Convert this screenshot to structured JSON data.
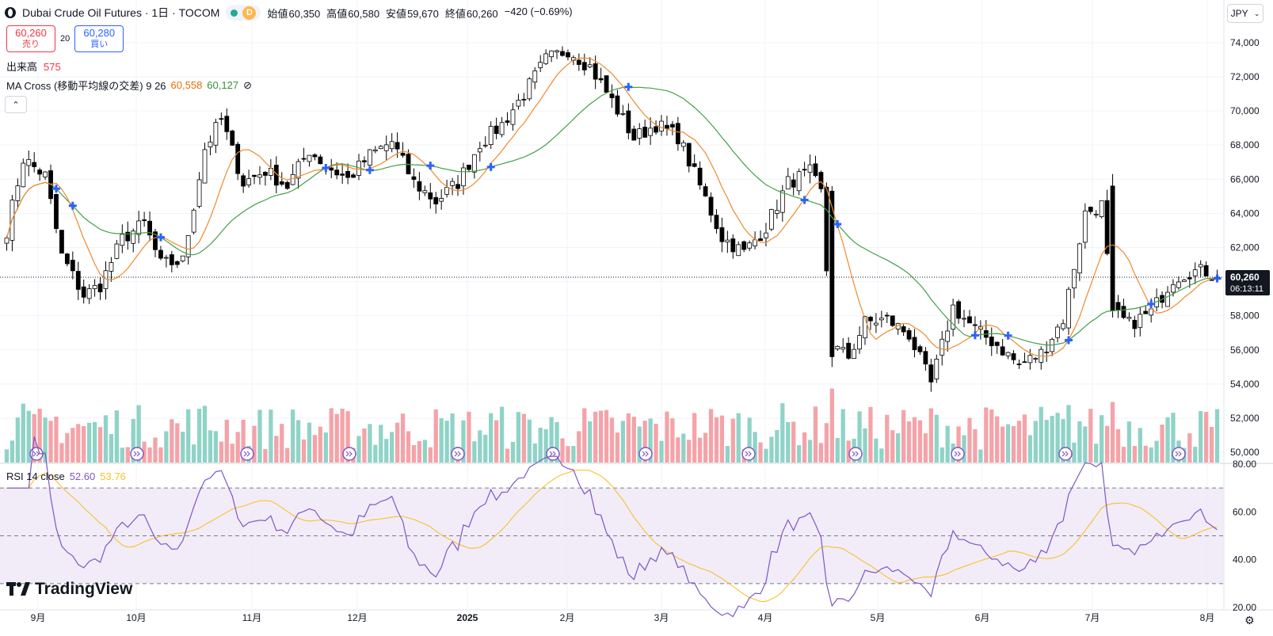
{
  "header": {
    "title": "Dubai Crude Oil Futures · 1日 · TOCOM",
    "interval_badge": "D",
    "open_label": "始値",
    "open": "60,350",
    "high_label": "高値",
    "high": "60,580",
    "low_label": "安値",
    "low": "59,670",
    "close_label": "終値",
    "close": "60,260",
    "change": "−420 (−0.69%)"
  },
  "trade": {
    "sell_price": "60,260",
    "sell_label": "売り",
    "spread": "20",
    "buy_price": "60,280",
    "buy_label": "買い"
  },
  "volume": {
    "label": "出来高",
    "value": "575"
  },
  "ma_cross": {
    "label": "MA Cross (移動平均線の交差) 9 26",
    "fast_value": "60,558",
    "slow_value": "60,127",
    "eye_icon": "⊘"
  },
  "rsi": {
    "label": "RSI 14 close",
    "value": "52.60",
    "ma_value": "53.76"
  },
  "currency": "JPY",
  "price_tag": {
    "price": "60,260",
    "countdown": "06:13:11"
  },
  "logo": "TradingView",
  "colors": {
    "up": "#ffffff",
    "down": "#000000",
    "ma_fast": "#ef8a2c",
    "ma_slow": "#43a047",
    "vol_up": "#8fd3c7",
    "vol_down": "#f4a3a8",
    "rsi": "#7e57c2",
    "rsi_ma": "#fbc02d",
    "cross_marker": "#2962ff"
  },
  "chart_data": [
    {
      "type": "candlestick",
      "title": "Dubai Crude Oil Futures · 1日 · TOCOM",
      "currency": "JPY",
      "y_ticks": [
        "74,000",
        "72,000",
        "70,000",
        "68,000",
        "66,000",
        "64,000",
        "62,000",
        "60,000",
        "58,000",
        "56,000",
        "54,000",
        "52,000",
        "50,000"
      ],
      "ylim": [
        49400,
        75200
      ],
      "x_ticks": [
        "9月",
        "10月",
        "11月",
        "12月",
        "2025",
        "2月",
        "3月",
        "4月",
        "5月",
        "6月",
        "7月",
        "8月"
      ],
      "last_price": 60260,
      "anchors": [
        {
          "i": 0,
          "p": 63000
        },
        {
          "i": 3,
          "p": 67200
        },
        {
          "i": 7,
          "p": 66200
        },
        {
          "i": 10,
          "p": 61500
        },
        {
          "i": 14,
          "p": 59200
        },
        {
          "i": 17,
          "p": 59800
        },
        {
          "i": 21,
          "p": 62500
        },
        {
          "i": 25,
          "p": 63400
        },
        {
          "i": 28,
          "p": 61000
        },
        {
          "i": 32,
          "p": 61200
        },
        {
          "i": 36,
          "p": 67800
        },
        {
          "i": 39,
          "p": 69500
        },
        {
          "i": 43,
          "p": 65800
        },
        {
          "i": 47,
          "p": 66500
        },
        {
          "i": 51,
          "p": 65600
        },
        {
          "i": 55,
          "p": 67700
        },
        {
          "i": 58,
          "p": 66800
        },
        {
          "i": 62,
          "p": 66000
        },
        {
          "i": 66,
          "p": 67400
        },
        {
          "i": 70,
          "p": 68200
        },
        {
          "i": 74,
          "p": 65800
        },
        {
          "i": 78,
          "p": 64700
        },
        {
          "i": 82,
          "p": 65800
        },
        {
          "i": 86,
          "p": 68100
        },
        {
          "i": 90,
          "p": 69200
        },
        {
          "i": 94,
          "p": 71000
        },
        {
          "i": 98,
          "p": 73000
        },
        {
          "i": 102,
          "p": 73600
        },
        {
          "i": 106,
          "p": 72600
        },
        {
          "i": 110,
          "p": 70600
        },
        {
          "i": 114,
          "p": 68400
        },
        {
          "i": 118,
          "p": 69200
        },
        {
          "i": 122,
          "p": 68500
        },
        {
          "i": 126,
          "p": 65600
        },
        {
          "i": 130,
          "p": 62600
        },
        {
          "i": 134,
          "p": 61700
        },
        {
          "i": 138,
          "p": 63200
        },
        {
          "i": 142,
          "p": 65800
        },
        {
          "i": 146,
          "p": 66400
        },
        {
          "i": 148,
          "p": 65200
        },
        {
          "i": 150,
          "p": 56200
        },
        {
          "i": 153,
          "p": 55600
        },
        {
          "i": 156,
          "p": 57600
        },
        {
          "i": 160,
          "p": 57800
        },
        {
          "i": 164,
          "p": 56900
        },
        {
          "i": 168,
          "p": 54000
        },
        {
          "i": 172,
          "p": 58500
        },
        {
          "i": 176,
          "p": 57200
        },
        {
          "i": 180,
          "p": 56300
        },
        {
          "i": 184,
          "p": 55100
        },
        {
          "i": 188,
          "p": 55800
        },
        {
          "i": 192,
          "p": 57800
        },
        {
          "i": 196,
          "p": 64000
        },
        {
          "i": 199,
          "p": 64500
        },
        {
          "i": 201,
          "p": 58200
        },
        {
          "i": 204,
          "p": 57500
        },
        {
          "i": 208,
          "p": 58200
        },
        {
          "i": 212,
          "p": 60200
        },
        {
          "i": 215,
          "p": 60600
        },
        {
          "i": 218,
          "p": 60600
        },
        {
          "i": 220,
          "p": 60260
        }
      ],
      "ma_fast_period": 9,
      "ma_slow_period": 26,
      "ma_fast_last": 60558,
      "ma_slow_last": 60127
    },
    {
      "type": "bar",
      "title": "出来高",
      "last_value": 575,
      "note": "volume bars coloured by candle direction"
    },
    {
      "type": "line",
      "title": "RSI 14 close",
      "y_ticks": [
        "80.00",
        "60.00",
        "40.00",
        "20.00"
      ],
      "ylim": [
        20,
        80
      ],
      "bands": [
        70,
        50,
        30
      ],
      "last_rsi": 52.6,
      "last_rsi_ma": 53.76
    }
  ]
}
